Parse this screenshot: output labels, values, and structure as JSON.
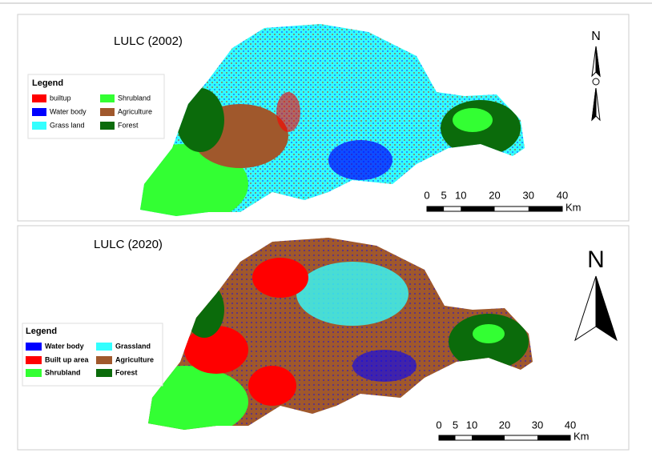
{
  "panels": [
    {
      "title": "LULC (2002)",
      "legend_title": "Legend",
      "legend": [
        {
          "label": "builtup",
          "color": "#ff0000"
        },
        {
          "label": "Shrubland",
          "color": "#33ff33"
        },
        {
          "label": "Water body",
          "color": "#0000ff"
        },
        {
          "label": "Agriculture",
          "color": "#a0582c"
        },
        {
          "label": "Grass land",
          "color": "#33ffff"
        },
        {
          "label": "Forest",
          "color": "#0b6b0b"
        }
      ],
      "north": "N",
      "scale_labels": [
        0,
        5,
        10,
        20,
        30,
        40
      ],
      "scale_unit": "Km"
    },
    {
      "title": "LULC (2020)",
      "legend_title": "Legend",
      "legend": [
        {
          "label": "Water body",
          "color": "#0000ff"
        },
        {
          "label": "Grassland",
          "color": "#33ffff"
        },
        {
          "label": "Built up area",
          "color": "#ff0000"
        },
        {
          "label": "Agriculture",
          "color": "#a0582c"
        },
        {
          "label": "Shrubland",
          "color": "#33ff33"
        },
        {
          "label": "Forest",
          "color": "#0b6b0b"
        }
      ],
      "north": "N",
      "scale_labels": [
        0,
        5,
        10,
        20,
        30,
        40
      ],
      "scale_unit": "Km"
    }
  ]
}
